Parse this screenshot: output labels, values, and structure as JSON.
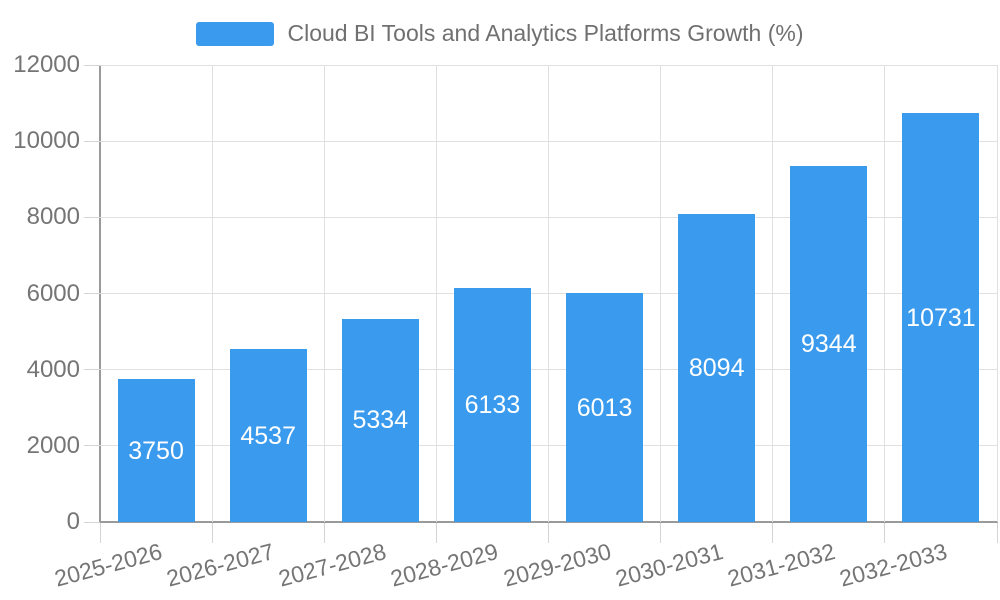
{
  "chart_data": {
    "type": "bar",
    "title": "Cloud BI Tools and Analytics Platforms Growth (%)",
    "categories": [
      "2025-2026",
      "2026-2027",
      "2027-2028",
      "2028-2029",
      "2029-2030",
      "2030-2031",
      "2031-2032",
      "2032-2033"
    ],
    "values": [
      3750,
      4537,
      5334,
      6133,
      6013,
      8094,
      9344,
      10731
    ],
    "ylim": [
      0,
      12000
    ],
    "yticks": [
      0,
      2000,
      4000,
      6000,
      8000,
      10000,
      12000
    ],
    "legend_position": "top-center",
    "grid": true,
    "x_label_rotation_deg": -15,
    "colors": {
      "bar": "#3a9aed",
      "value_label": "#ffffff",
      "axis_label": "#757575",
      "title": "#707070",
      "grid_line": "#e0e0e0",
      "tick_mark": "#d4d4d4",
      "axis_line": "#9a9a9a",
      "background": "#ffffff"
    }
  }
}
